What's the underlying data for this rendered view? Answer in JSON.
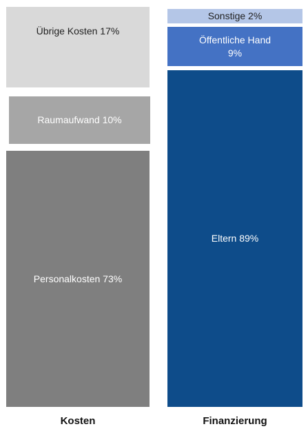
{
  "chart_data": {
    "type": "bar",
    "stacked": true,
    "title": "",
    "xlabel": "",
    "ylabel": "",
    "categories": [
      "Kosten",
      "Finanzierung"
    ],
    "ylim": [
      0,
      100
    ],
    "bars": [
      {
        "category": "Kosten",
        "segments": [
          {
            "name": "Personalkosten",
            "value": 73,
            "label": "Personalkosten  73%",
            "color": "#7f7f7f"
          },
          {
            "name": "Raumaufwand",
            "value": 10,
            "label": "Raumaufwand  10%",
            "color": "#a6a6a6"
          },
          {
            "name": "Übrige Kosten",
            "value": 17,
            "label": "Übrige Kosten 17%",
            "color": "#d9d9d9"
          }
        ]
      },
      {
        "category": "Finanzierung",
        "segments": [
          {
            "name": "Eltern",
            "value": 89,
            "label": "Eltern 89%",
            "color": "#0e4c8a"
          },
          {
            "name": "Öffentliche Hand",
            "value": 9,
            "label_line1": "Öffentliche Hand",
            "label_line2": "9%",
            "color": "#4472c4"
          },
          {
            "name": "Sonstige",
            "value": 2,
            "label": "Sonstige 2%",
            "color": "#b4c6e7"
          }
        ]
      }
    ]
  }
}
